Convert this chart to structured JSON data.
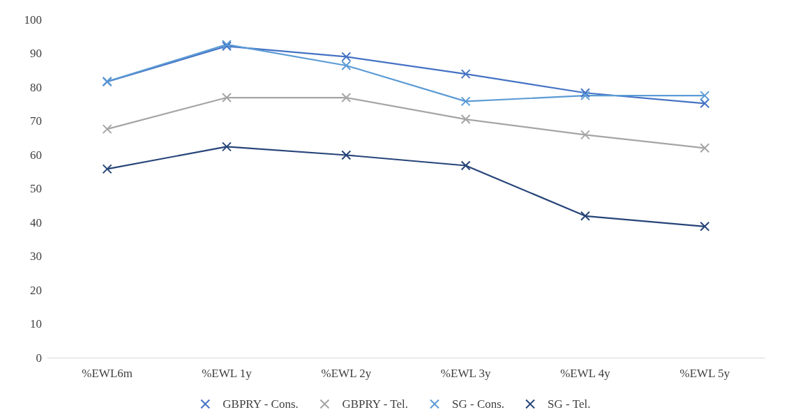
{
  "chart_data": {
    "type": "line",
    "categories": [
      "%EWL6m",
      "%EWL 1y",
      "%EWL 2y",
      "%EWL 3y",
      "%EWL 4y",
      "%EWL 5y"
    ],
    "series": [
      {
        "name": "GBPRY - Cons.",
        "color": "#4472c4",
        "values": [
          81.6,
          92.1,
          89.0,
          83.9,
          78.3,
          75.2
        ]
      },
      {
        "name": "GBPRY - Tel.",
        "color": "#a5a5a5",
        "values": [
          67.6,
          76.9,
          76.9,
          70.5,
          65.9,
          62.0
        ]
      },
      {
        "name": "SG - Cons.",
        "color": "#5b9bd5",
        "values": [
          81.7,
          92.6,
          86.4,
          75.8,
          77.5,
          77.5
        ]
      },
      {
        "name": "SG - Tel.",
        "color": "#264478",
        "values": [
          55.8,
          62.4,
          59.9,
          56.8,
          41.9,
          38.8
        ]
      }
    ],
    "ylim": [
      0,
      100
    ],
    "yticks": [
      0,
      10,
      20,
      30,
      40,
      50,
      60,
      70,
      80,
      90,
      100
    ],
    "grid": false,
    "legend": "bottom",
    "marker": "cross",
    "line_style": "solid"
  }
}
